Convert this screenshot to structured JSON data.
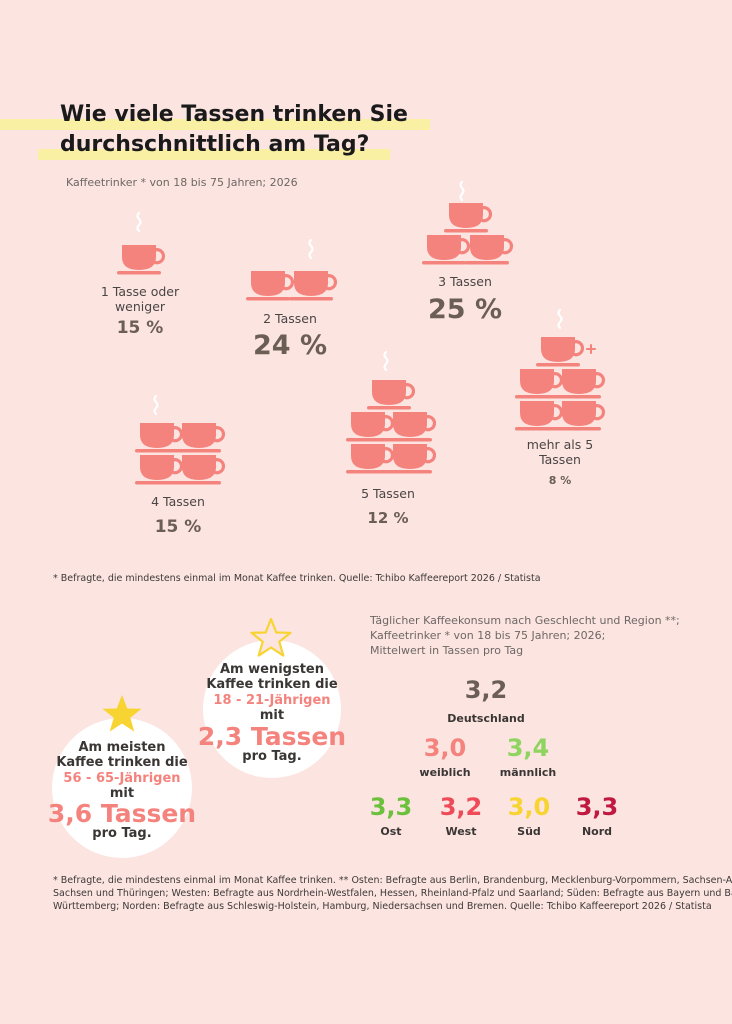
{
  "title": {
    "line1": "Wie viele Tassen trinken Sie",
    "line2": "durchschnittlich am Tag?"
  },
  "subtitle": "Kaffeetrinker * von 18 bis 75 Jahren; 2026",
  "colors": {
    "background": "#fce4e1",
    "cup": "#f5837d",
    "highlight": "#f9f0a4",
    "percent": "#6b5e55",
    "star_gold": "#f7d431",
    "ost": "#6cc13c",
    "west": "#ee4a58",
    "sued": "#f7d431",
    "nord": "#c0183e",
    "weiblich": "#f5837d",
    "maennlich": "#8fd45f"
  },
  "chart_data": [
    {
      "type": "pictogram",
      "series": [
        {
          "values": [
            15,
            24,
            25,
            15,
            12,
            8
          ]
        }
      ],
      "categories": [
        "1 Tasse oder weniger",
        "2 Tassen",
        "3 Tassen",
        "4 Tassen",
        "5 Tassen",
        "mehr als 5 Tassen"
      ],
      "labels": {
        "c1": "1 Tasse oder weniger",
        "c2": "2 Tassen",
        "c3": "3 Tassen",
        "c4": "4 Tassen",
        "c5": "5 Tassen",
        "c6": "mehr als 5 Tassen"
      },
      "value_labels": {
        "c1": "15 %",
        "c2": "24 %",
        "c3": "25 %",
        "c4": "15 %",
        "c5": "12 %",
        "c6": "8 %"
      }
    },
    {
      "type": "table",
      "title": "Täglicher Kaffeekonsum nach Geschlecht und Region **; Kaffeetrinker * von 18 bis 75 Jahren; 2026; Mittelwert in Tassen pro Tag",
      "categories": [
        "Deutschland",
        "weiblich",
        "männlich",
        "Ost",
        "West",
        "Süd",
        "Nord"
      ],
      "values": [
        3.2,
        3.0,
        3.4,
        3.3,
        3.2,
        3.0,
        3.3
      ],
      "value_labels": [
        "3,2",
        "3,0",
        "3,4",
        "3,3",
        "3,2",
        "3,0",
        "3,3"
      ]
    }
  ],
  "footnote1": "* Befragte, die mindestens einmal im Monat Kaffee trinken. Quelle: Tchibo Kaffeereport 2026 / Statista",
  "right_title": {
    "line1": "Täglicher Kaffeekonsum nach Geschlecht und Region **;",
    "line2": "Kaffeetrinker * von 18 bis 75 Jahren; 2026;",
    "line3": "Mittelwert in Tassen pro Tag"
  },
  "least": {
    "line1": "Am wenigsten",
    "line2": "Kaffee trinken die",
    "age": "18 - 21-Jährigen",
    "mit": "mit",
    "value": "2,3 Tassen",
    "per": "pro Tag."
  },
  "most": {
    "line1": "Am meisten",
    "line2": "Kaffee trinken die",
    "age": "56 - 65-Jährigen",
    "mit": "mit",
    "value": "3,6 Tassen",
    "per": "pro Tag."
  },
  "footnote2": {
    "line1": "* Befragte, die mindestens einmal im Monat Kaffee trinken. ** Osten: Befragte aus Berlin, Brandenburg, Mecklenburg-Vorpommern, Sachsen-Anhalt,",
    "line2": "Sachsen und Thüringen; Westen: Befragte aus Nordrhein-Westfalen, Hessen, Rheinland-Pfalz und Saarland; Süden: Befragte aus Bayern und Baden-",
    "line3": "Württemberg; Norden: Befragte aus Schleswig-Holstein, Hamburg, Niedersachsen und Bremen. Quelle: Tchibo Kaffeereport 2026 / Statista"
  }
}
